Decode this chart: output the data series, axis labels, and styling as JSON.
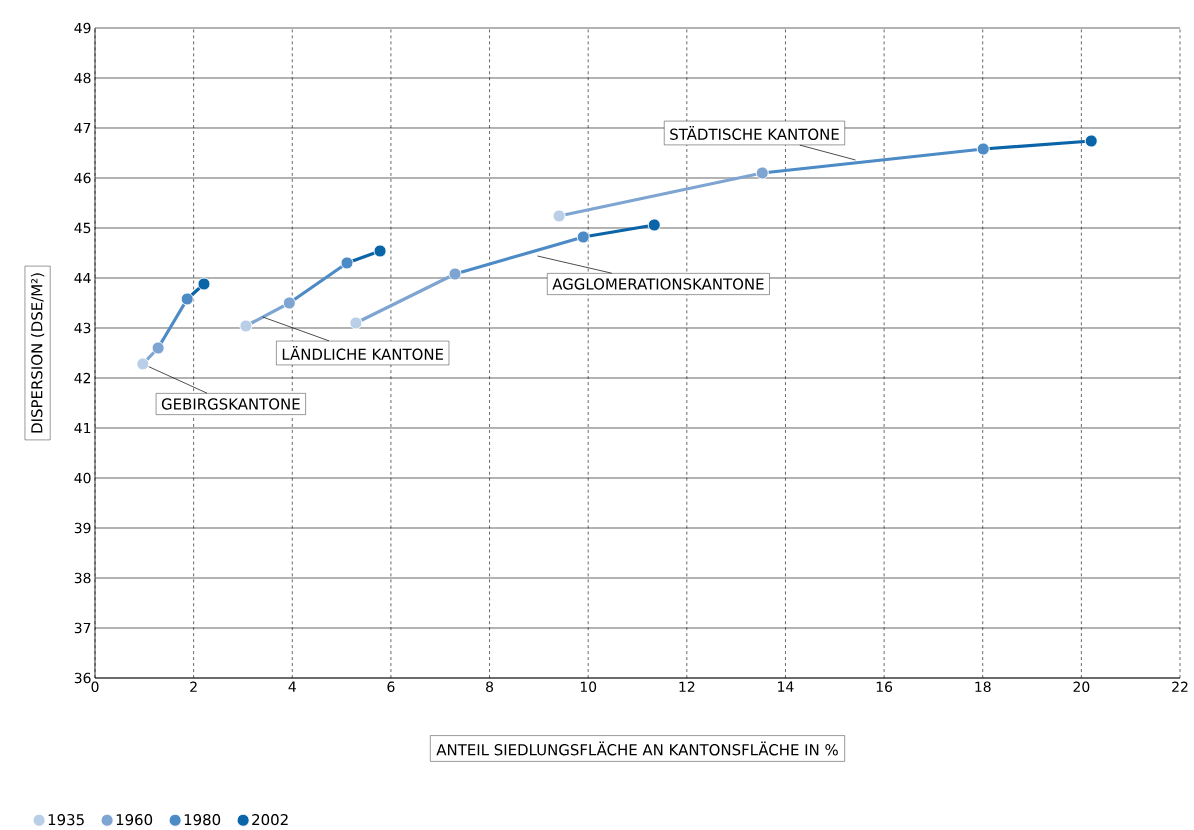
{
  "chart_data": {
    "type": "line",
    "xlabel": "ANTEIL SIEDLUNGSFLÄCHE AN KANTONSFLÄCHE IN %",
    "ylabel": "DISPERSION (DSE/M²)",
    "xlim": [
      0,
      22
    ],
    "xticks": [
      0,
      2,
      4,
      6,
      8,
      10,
      12,
      14,
      16,
      18,
      20,
      22
    ],
    "ylim": [
      36,
      49
    ],
    "yticks": [
      36,
      37,
      38,
      39,
      40,
      41,
      42,
      43,
      44,
      45,
      46,
      47,
      48,
      49
    ],
    "grid": true,
    "legend": "bottom left",
    "line_style": "solid",
    "series": [
      {
        "marker": "none",
        "color": "#7ea4d1",
        "x": [
          0.97,
          1.28
        ],
        "values": [
          42.28,
          42.6
        ]
      },
      {
        "marker": "none",
        "color": "#4c8bc6",
        "x": [
          1.28,
          1.87
        ],
        "values": [
          42.6,
          43.58
        ]
      },
      {
        "marker": "none",
        "color": "#0a64a8",
        "x": [
          1.87,
          2.21
        ],
        "values": [
          43.58,
          43.88
        ]
      },
      {
        "marker": "none",
        "color": "#7ea4d1",
        "x": [
          3.06,
          3.94
        ],
        "values": [
          43.04,
          43.5
        ]
      },
      {
        "marker": "none",
        "color": "#4c8bc6",
        "x": [
          3.94,
          5.11
        ],
        "values": [
          43.5,
          44.3
        ]
      },
      {
        "marker": "none",
        "color": "#0a64a8",
        "x": [
          5.11,
          5.78
        ],
        "values": [
          44.3,
          44.54
        ]
      },
      {
        "marker": "none",
        "color": "#7ea4d1",
        "x": [
          5.29,
          7.3
        ],
        "values": [
          43.1,
          44.08
        ]
      },
      {
        "marker": "none",
        "color": "#4c8bc6",
        "x": [
          7.3,
          9.9
        ],
        "values": [
          44.08,
          44.82
        ]
      },
      {
        "marker": "none",
        "color": "#0a64a8",
        "x": [
          9.9,
          11.34
        ],
        "values": [
          44.82,
          45.06
        ]
      },
      {
        "marker": "none",
        "color": "#7ea4d1",
        "x": [
          9.41,
          13.53
        ],
        "values": [
          45.24,
          46.1
        ]
      },
      {
        "marker": "none",
        "color": "#4c8bc6",
        "x": [
          13.53,
          18.01
        ],
        "values": [
          46.1,
          46.58
        ]
      },
      {
        "marker": "none",
        "color": "#0a64a8",
        "x": [
          18.01,
          20.2
        ],
        "values": [
          46.58,
          46.74
        ]
      },
      {
        "type": "scatter",
        "name": "1935",
        "color": "#b9cfe7",
        "marker": "circle",
        "x": [
          0.97,
          3.06,
          5.29,
          9.41
        ],
        "values": [
          42.28,
          43.04,
          43.1,
          45.24
        ]
      },
      {
        "type": "scatter",
        "name": "1960",
        "color": "#7ea4d1",
        "marker": "circle",
        "x": [
          1.28,
          3.94,
          7.3,
          13.53
        ],
        "values": [
          42.6,
          43.5,
          44.08,
          46.1
        ]
      },
      {
        "type": "scatter",
        "name": "1980",
        "color": "#4c8bc6",
        "marker": "circle",
        "x": [
          1.87,
          5.11,
          9.9,
          18.01
        ],
        "values": [
          43.58,
          44.3,
          44.82,
          46.58
        ]
      },
      {
        "type": "scatter",
        "name": "2002",
        "color": "#0a64a8",
        "marker": "circle",
        "x": [
          2.21,
          5.78,
          11.34,
          20.2
        ],
        "values": [
          43.88,
          44.54,
          45.06,
          46.74
        ]
      }
    ],
    "annotations": [
      {
        "text": "GEBIRGSKANTONE",
        "x": 0.97,
        "y": 42.28
      },
      {
        "text": "LÄNDLICHE KANTONE",
        "x": 3.4,
        "y": 43.22
      },
      {
        "text": "AGGLOMERATIONSKANTONE",
        "x": 8.97,
        "y": 44.44
      },
      {
        "text": "STÄDTISCHE KANTONE",
        "x": 15.42,
        "y": 46.36
      }
    ]
  }
}
